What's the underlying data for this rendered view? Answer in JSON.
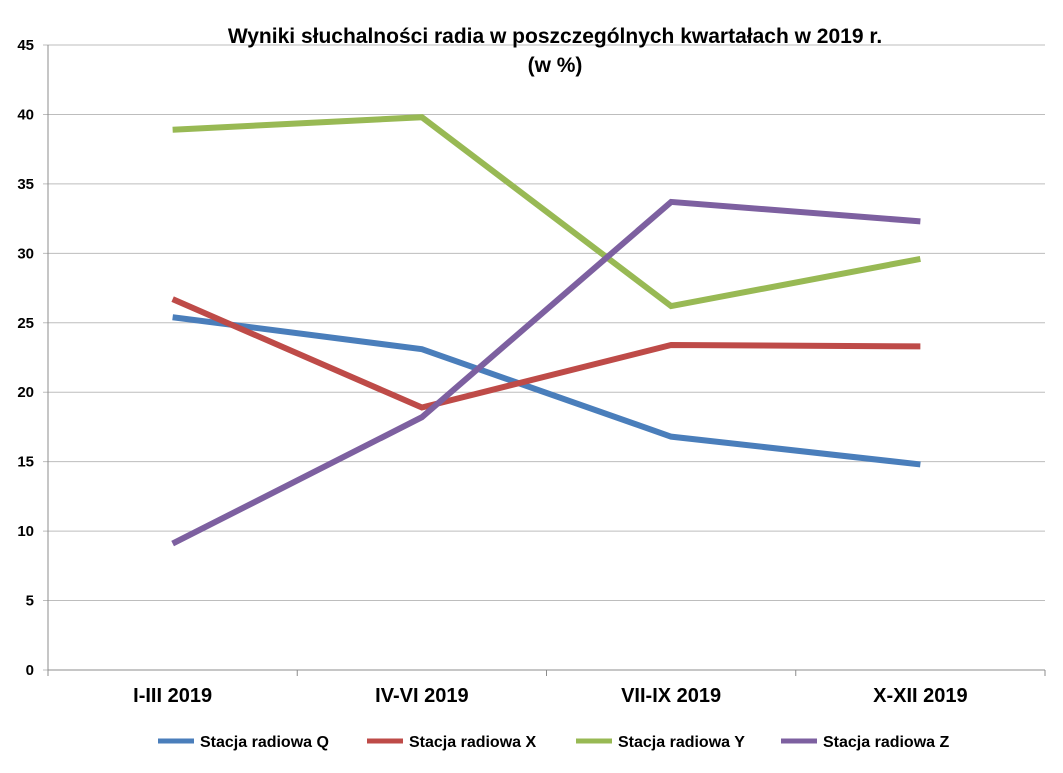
{
  "chart_data": {
    "type": "line",
    "title": "Wyniki słuchalności radia w poszczególnych kwartałach w 2019 r.",
    "subtitle": "(w %)",
    "categories": [
      "I-III 2019",
      "IV-VI 2019",
      "VII-IX 2019",
      "X-XII 2019"
    ],
    "ylim": [
      0,
      45
    ],
    "yticks": [
      0,
      5,
      10,
      15,
      20,
      25,
      30,
      35,
      40,
      45
    ],
    "grid": true,
    "legend_position": "bottom",
    "xlabel": "",
    "ylabel": "",
    "series": [
      {
        "name": "Stacja radiowa Q",
        "color": "#4a7ebb",
        "values": [
          25.4,
          23.1,
          16.8,
          14.8
        ]
      },
      {
        "name": "Stacja radiowa X",
        "color": "#be4b48",
        "values": [
          26.7,
          18.9,
          23.4,
          23.3
        ]
      },
      {
        "name": "Stacja radiowa Y",
        "color": "#98b954",
        "values": [
          38.9,
          39.8,
          26.2,
          29.6
        ]
      },
      {
        "name": "Stacja radiowa Z",
        "color": "#7d60a0",
        "values": [
          9.1,
          18.2,
          33.7,
          32.3
        ]
      }
    ]
  }
}
